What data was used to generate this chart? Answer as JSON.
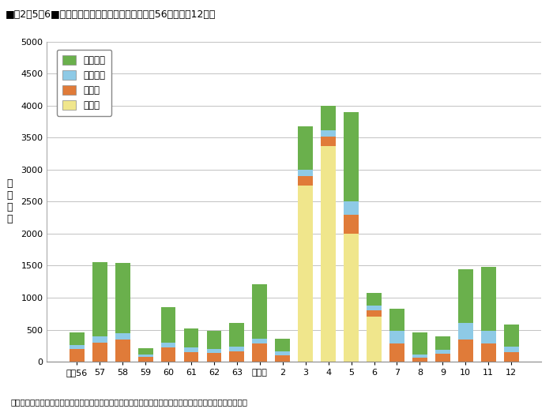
{
  "title_prefix": "■図2－5－6■",
  "title_main": "土砂災害の発生状況の推移（昭和56年～平成12年）",
  "ylabel": "発\n生\n件\n数",
  "footnote": "（注）（財）砂防・地すべり技術センター「土砂災害の実態」及び国土交通省砂防部資料より内閣府作成。",
  "categories": [
    "昭和56",
    "57",
    "58",
    "59",
    "60",
    "61",
    "62",
    "63",
    "平成元",
    "2",
    "3",
    "4",
    "5",
    "6",
    "7",
    "8",
    "9",
    "10",
    "11",
    "12"
  ],
  "legend_labels": [
    "がけ崩れ",
    "地すべり",
    "土石流",
    "火砕流"
  ],
  "colors": [
    "#6ab04c",
    "#8ecae6",
    "#e07b39",
    "#f0e68c"
  ],
  "ylim": [
    0,
    5000
  ],
  "yticks": [
    0,
    500,
    1000,
    1500,
    2000,
    2500,
    3000,
    3500,
    4000,
    4500,
    5000
  ],
  "gake_kuzure": [
    200,
    1150,
    1100,
    100,
    550,
    300,
    280,
    380,
    850,
    200,
    680,
    380,
    1400,
    200,
    350,
    350,
    200,
    850,
    1000,
    350
  ],
  "jisuberi": [
    60,
    100,
    90,
    30,
    80,
    70,
    60,
    70,
    80,
    60,
    100,
    100,
    200,
    80,
    200,
    50,
    60,
    250,
    200,
    80
  ],
  "dosekiry": [
    200,
    300,
    350,
    80,
    220,
    150,
    140,
    160,
    280,
    100,
    150,
    150,
    300,
    100,
    280,
    60,
    130,
    350,
    280,
    150
  ],
  "kasairyu": [
    0,
    0,
    0,
    0,
    0,
    0,
    0,
    0,
    0,
    0,
    2750,
    3370,
    2000,
    700,
    0,
    0,
    0,
    0,
    0,
    0
  ]
}
